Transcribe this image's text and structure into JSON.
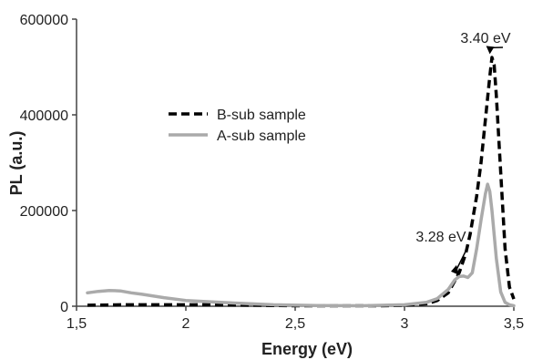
{
  "chart_data": {
    "type": "line",
    "title": "",
    "xlabel": "Energy (eV)",
    "ylabel": "PL (a.u.)",
    "xlim": [
      1.5,
      3.5
    ],
    "ylim": [
      0,
      600000
    ],
    "x_ticks": [
      1.5,
      2,
      2.5,
      3,
      3.5
    ],
    "x_tick_labels": [
      "1,5",
      "2",
      "2,5",
      "3",
      "3,5"
    ],
    "y_ticks": [
      0,
      200000,
      400000,
      600000
    ],
    "y_tick_labels": [
      "0",
      "200000",
      "400000",
      "600000"
    ],
    "grid": false,
    "legend_position": "upper-left",
    "series": [
      {
        "name": "B-sub sample",
        "color": "#000000",
        "style": "dashed",
        "x": [
          1.55,
          1.7,
          1.9,
          2.1,
          2.3,
          2.5,
          2.7,
          2.9,
          3.0,
          3.1,
          3.15,
          3.2,
          3.25,
          3.28,
          3.3,
          3.33,
          3.35,
          3.37,
          3.39,
          3.4,
          3.41,
          3.42,
          3.44,
          3.46,
          3.48,
          3.5
        ],
        "y": [
          2000,
          3000,
          3000,
          3000,
          2000,
          1000,
          1000,
          1000,
          2000,
          5000,
          12000,
          28000,
          70000,
          110000,
          150000,
          230000,
          300000,
          390000,
          480000,
          520000,
          505000,
          440000,
          280000,
          120000,
          40000,
          15000
        ]
      },
      {
        "name": "A-sub sample",
        "color": "#aaaaaa",
        "style": "solid",
        "x": [
          1.55,
          1.6,
          1.65,
          1.7,
          1.75,
          1.8,
          1.9,
          2.0,
          2.2,
          2.4,
          2.6,
          2.8,
          3.0,
          3.1,
          3.15,
          3.2,
          3.23,
          3.25,
          3.27,
          3.29,
          3.31,
          3.33,
          3.35,
          3.37,
          3.38,
          3.39,
          3.4,
          3.42,
          3.44,
          3.46,
          3.48,
          3.5
        ],
        "y": [
          28000,
          31000,
          33000,
          32000,
          28000,
          25000,
          18000,
          12000,
          7000,
          3000,
          1500,
          1000,
          3000,
          8000,
          16000,
          35000,
          55000,
          62000,
          63000,
          60000,
          70000,
          120000,
          180000,
          235000,
          255000,
          240000,
          200000,
          100000,
          30000,
          8000,
          3000,
          1000
        ]
      }
    ],
    "annotations": [
      {
        "text": "3.40 eV",
        "x": 3.39,
        "y": 525000
      },
      {
        "text": "3.28 eV",
        "x": 3.25,
        "y": 65000
      }
    ]
  }
}
